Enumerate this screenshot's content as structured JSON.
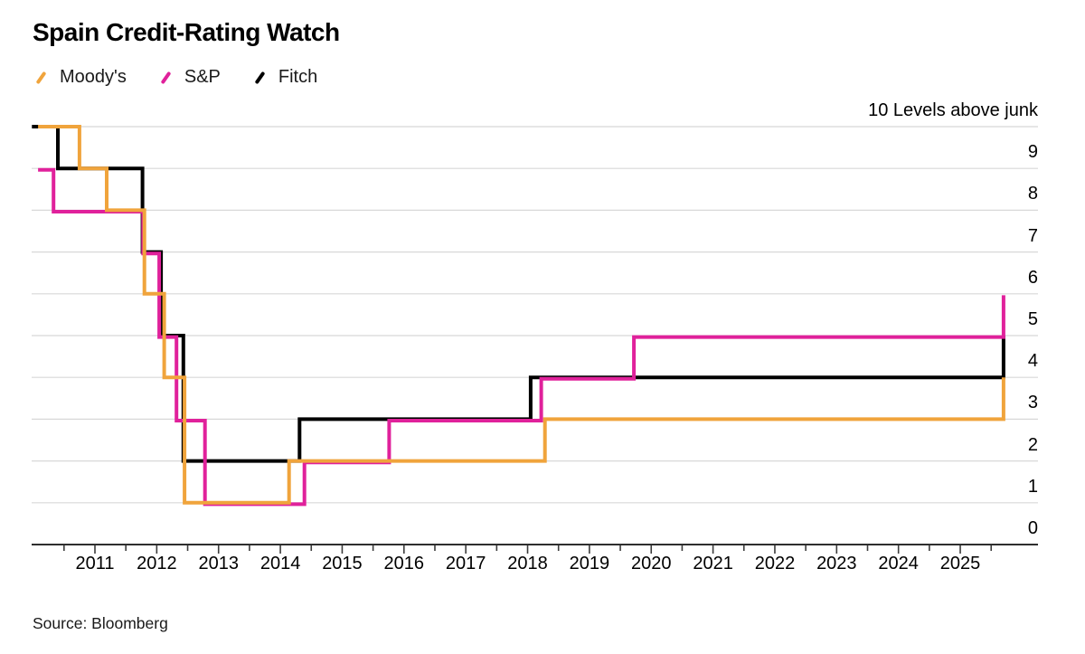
{
  "title": "Spain Credit-Rating Watch",
  "source": "Source: Bloomberg",
  "chart_data": {
    "type": "line",
    "subtype": "step",
    "title": "Spain Credit-Rating Watch",
    "legend_position": "top-left",
    "grid": "horizontal",
    "colors": {
      "moodys": "#F0A43C",
      "sp": "#E0219B",
      "fitch": "#000000",
      "gridline": "#D8D8D8",
      "axis": "#2E2E2E"
    },
    "y_axis": {
      "top_label": "10 Levels above junk",
      "ticks": [
        0,
        1,
        2,
        3,
        4,
        5,
        6,
        7,
        8,
        9
      ],
      "range": [
        0,
        10
      ],
      "unit": "levels above junk"
    },
    "x_axis": {
      "years": [
        2011,
        2012,
        2013,
        2014,
        2015,
        2016,
        2017,
        2018,
        2019,
        2020,
        2021,
        2022,
        2023,
        2024,
        2025
      ],
      "range": [
        2009.98,
        2026.26
      ],
      "minor_tick_interval": 0.5
    },
    "series": [
      {
        "key": "moodys",
        "name": "Moody's",
        "color": "#F0A43C",
        "points": [
          [
            2010.08,
            10
          ],
          [
            2010.75,
            9
          ],
          [
            2011.19,
            8
          ],
          [
            2011.8,
            6
          ],
          [
            2012.12,
            4
          ],
          [
            2012.45,
            1
          ],
          [
            2014.14,
            2
          ],
          [
            2018.28,
            3
          ],
          [
            2025.7,
            4
          ]
        ]
      },
      {
        "key": "sp",
        "name": "S&P",
        "color": "#E0219B",
        "points": [
          [
            2010.08,
            9
          ],
          [
            2010.33,
            8
          ],
          [
            2011.78,
            7
          ],
          [
            2012.04,
            5
          ],
          [
            2012.32,
            3
          ],
          [
            2012.78,
            1
          ],
          [
            2014.39,
            2
          ],
          [
            2015.76,
            3
          ],
          [
            2018.22,
            4
          ],
          [
            2019.72,
            5
          ],
          [
            2025.7,
            6
          ]
        ]
      },
      {
        "key": "fitch",
        "name": "Fitch",
        "color": "#000000",
        "points": [
          [
            2009.98,
            10
          ],
          [
            2010.4,
            9
          ],
          [
            2011.77,
            7
          ],
          [
            2012.07,
            5
          ],
          [
            2012.43,
            2
          ],
          [
            2014.31,
            3
          ],
          [
            2018.05,
            4
          ],
          [
            2025.7,
            5
          ]
        ]
      }
    ]
  }
}
